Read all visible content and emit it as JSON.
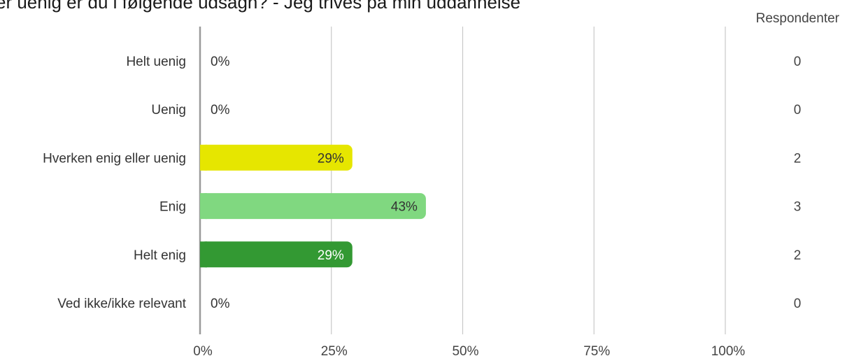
{
  "chart_data": {
    "type": "bar",
    "orientation": "horizontal",
    "title": "er uenig er du i følgende udsagn? - Jeg trives på min uddannelse",
    "categories": [
      "Helt uenig",
      "Uenig",
      "Hverken enig eller uenig",
      "Enig",
      "Helt enig",
      "Ved ikke/ikke relevant"
    ],
    "values": [
      0,
      0,
      29,
      43,
      29,
      0
    ],
    "value_labels": [
      "0%",
      "0%",
      "29%",
      "43%",
      "29%",
      "0%"
    ],
    "respondents": [
      0,
      0,
      2,
      3,
      2,
      0
    ],
    "respondents_label": "Respondenter",
    "xlim": [
      0,
      100
    ],
    "xticks": [
      0,
      25,
      50,
      75,
      100
    ],
    "xtick_labels": [
      "0%",
      "25%",
      "50%",
      "75%",
      "100%"
    ],
    "grid": true,
    "colors": [
      "#e6e600",
      "#e6e600",
      "#e6e600",
      "#80d880",
      "#339933",
      "#e6e600"
    ],
    "label_colors": [
      "#333333",
      "#333333",
      "#333333",
      "#333333",
      "#ffffff",
      "#333333"
    ]
  }
}
